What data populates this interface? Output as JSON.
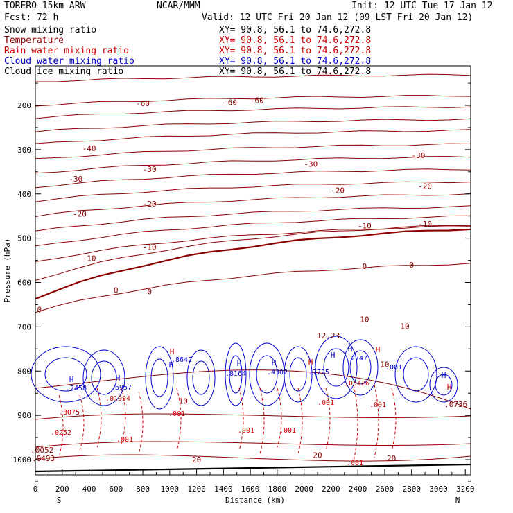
{
  "header": {
    "model": "TORERO  15km ARW",
    "center": "NCAR/MMM",
    "init": "Init: 12 UTC Tue 17 Jan 12",
    "fcst": "Fcst:   72 h",
    "valid": "Valid: 12 UTC Fri 20 Jan 12 (09 LST Fri 20 Jan 12)"
  },
  "fields": [
    {
      "label": "Snow mixing ratio",
      "xy": "XY=  90.8, 56.1 to  74.6,272.8",
      "color": "#000000",
      "xycolor": "#000000"
    },
    {
      "label": "Temperature",
      "xy": "XY=  90.8, 56.1 to  74.6,272.8",
      "color": "#8b0000",
      "xycolor": "#cc0000"
    },
    {
      "label": "Rain water mixing ratio",
      "xy": "XY=  90.8, 56.1 to  74.6,272.8",
      "color": "#cc0000",
      "xycolor": "#cc0000"
    },
    {
      "label": "Cloud water mixing ratio",
      "xy": "XY=  90.8, 56.1 to  74.6,272.8",
      "color": "#0000cc",
      "xycolor": "#0000cc"
    },
    {
      "label": "Cloud ice mixing ratio",
      "xy": "XY=  90.8, 56.1 to  74.6,272.8",
      "color": "#000000",
      "xycolor": "#000000"
    }
  ],
  "chart_data": {
    "type": "cross-section contour",
    "xlabel": "Distance (km)",
    "ylabel": "Pressure (hPa)",
    "xlim": [
      0,
      3240
    ],
    "ylim": [
      1050,
      100
    ],
    "x_ticks": [
      0,
      200,
      400,
      600,
      800,
      1000,
      1200,
      1400,
      1600,
      1800,
      2000,
      2200,
      2400,
      2600,
      2800,
      3000,
      3200
    ],
    "y_ticks": [
      200,
      300,
      400,
      500,
      600,
      700,
      800,
      900,
      1000
    ],
    "x_end_labels": {
      "left": "S",
      "right": "N"
    },
    "temperature_isotherms": {
      "interval_C": 5,
      "colored": "#8b0000",
      "labels": [
        {
          "text": "-60",
          "x": 800,
          "p": 195
        },
        {
          "text": "-60",
          "x": 1450,
          "p": 193
        },
        {
          "text": "-60",
          "x": 1650,
          "p": 188
        },
        {
          "text": "-40",
          "x": 400,
          "p": 297
        },
        {
          "text": "-30",
          "x": 850,
          "p": 344
        },
        {
          "text": "-30",
          "x": 300,
          "p": 366
        },
        {
          "text": "-30",
          "x": 2050,
          "p": 332
        },
        {
          "text": "-30",
          "x": 2850,
          "p": 313
        },
        {
          "text": "-20",
          "x": 330,
          "p": 445
        },
        {
          "text": "-20",
          "x": 850,
          "p": 422
        },
        {
          "text": "-20",
          "x": 2250,
          "p": 392
        },
        {
          "text": "-20",
          "x": 2900,
          "p": 382
        },
        {
          "text": "-10",
          "x": 400,
          "p": 545
        },
        {
          "text": "-10",
          "x": 850,
          "p": 520
        },
        {
          "text": "-10",
          "x": 2450,
          "p": 472
        },
        {
          "text": "-10",
          "x": 2900,
          "p": 468
        },
        {
          "text": "0",
          "x": 600,
          "p": 617
        },
        {
          "text": "0",
          "x": 850,
          "p": 620
        },
        {
          "text": "0",
          "x": 2450,
          "p": 563
        },
        {
          "text": "0",
          "x": 2800,
          "p": 560
        },
        {
          "text": "0",
          "x": 30,
          "p": 661
        },
        {
          "text": "10",
          "x": 2450,
          "p": 683
        },
        {
          "text": "10",
          "x": 2750,
          "p": 699
        },
        {
          "text": "10",
          "x": 1100,
          "p": 868
        },
        {
          "text": "10",
          "x": 2600,
          "p": 785
        },
        {
          "text": "20",
          "x": 1200,
          "p": 1000
        },
        {
          "text": "20",
          "x": 2100,
          "p": 990
        },
        {
          "text": "20",
          "x": 2650,
          "p": 997
        }
      ]
    },
    "rain_labels": [
      ".3075",
      ".01994",
      ".001",
      ".0252",
      ".001",
      ".001",
      ".001",
      ".001",
      ".05426",
      ".001",
      ".001"
    ],
    "cloud_water_labels": [
      ".7458",
      ".6957",
      ".8164",
      ".8642",
      ".7725",
      "2747",
      ".001",
      ".4302"
    ],
    "high_marks": [
      "H",
      "H",
      "H",
      "H",
      "H",
      "H",
      "H",
      "H",
      "H",
      "H",
      "H",
      "H"
    ],
    "annotations": [
      {
        "text": "12.23",
        "x": 2180,
        "p": 720
      },
      {
        "text": ".0493",
        "x": 60,
        "p": 997
      },
      {
        "text": ".0052",
        "x": 50,
        "p": 978
      },
      {
        "text": ".0736",
        "x": 3130,
        "p": 875
      }
    ]
  }
}
